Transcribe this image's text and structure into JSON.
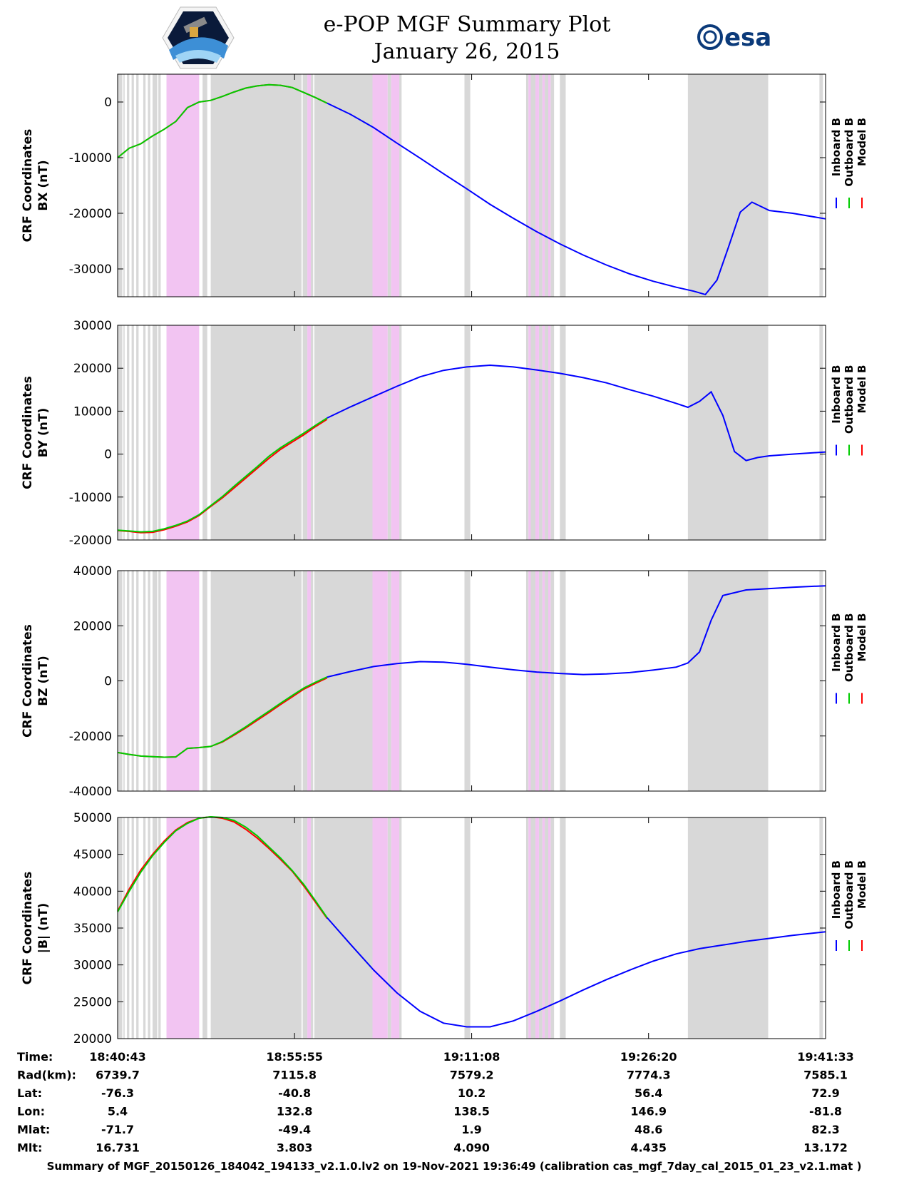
{
  "title": "e-POP MGF Summary Plot",
  "subtitle": "January 26, 2015",
  "logos": {
    "left": "cassiope-satellite-logo",
    "right_text": "esa"
  },
  "colors": {
    "inboard": "#0000ff",
    "outboard": "#00cc00",
    "model": "#ff0000",
    "gray_band": "#d8d8d8",
    "pink_band": "#f2c4f2"
  },
  "legend": [
    "Inboard B",
    "Outboard B",
    "Model B"
  ],
  "x_ticks": [
    "18:40:43",
    "18:55:55",
    "19:11:08",
    "19:26:20",
    "19:41:33"
  ],
  "table": {
    "rows": [
      {
        "label": "Time:",
        "values": [
          "18:40:43",
          "18:55:55",
          "19:11:08",
          "19:26:20",
          "19:41:33"
        ]
      },
      {
        "label": "Rad(km):",
        "values": [
          "6739.7",
          "7115.8",
          "7579.2",
          "7774.3",
          "7585.1"
        ]
      },
      {
        "label": "Lat:",
        "values": [
          "-76.3",
          "-40.8",
          "10.2",
          "56.4",
          "72.9"
        ]
      },
      {
        "label": "Lon:",
        "values": [
          "5.4",
          "132.8",
          "138.5",
          "146.9",
          "-81.8"
        ]
      },
      {
        "label": "Mlat:",
        "values": [
          "-71.7",
          "-49.4",
          "1.9",
          "48.6",
          "82.3"
        ]
      },
      {
        "label": "Mlt:",
        "values": [
          "16.731",
          "3.803",
          "4.090",
          "4.435",
          "13.172"
        ]
      }
    ]
  },
  "footer": "Summary of MGF_20150126_184042_194133_v2.1.0.lv2 on 19-Nov-2021 19:36:49 (calibration cas_mgf_7day_cal_2015_01_23_v2.1.mat )",
  "chart_data": {
    "type": "line",
    "x_unit": "minutes after 18:40:43",
    "xlim": [
      0,
      60.83
    ],
    "x_tick_values": [
      0,
      15.2,
      30.42,
      45.62,
      60.83
    ],
    "gray_bands": [
      [
        0,
        0.4
      ],
      [
        0.5,
        0.6
      ],
      [
        0.8,
        1.0
      ],
      [
        1.2,
        1.4
      ],
      [
        1.6,
        1.8
      ],
      [
        2.2,
        2.4
      ],
      [
        2.6,
        2.8
      ],
      [
        3.0,
        3.4
      ],
      [
        3.5,
        3.7
      ],
      [
        4.2,
        4.7
      ],
      [
        5.9,
        6.2
      ],
      [
        6.6,
        7.0
      ],
      [
        7.3,
        7.7
      ],
      [
        8.0,
        15.8
      ],
      [
        15.9,
        16.3
      ],
      [
        16.6,
        16.8
      ],
      [
        16.9,
        21.9
      ],
      [
        22.1,
        22.6
      ],
      [
        23.2,
        23.5
      ],
      [
        24.2,
        24.4
      ],
      [
        29.8,
        30.3
      ],
      [
        35.1,
        35.3
      ],
      [
        35.5,
        35.9
      ],
      [
        36.2,
        36.5
      ],
      [
        36.7,
        37.0
      ],
      [
        37.2,
        37.5
      ],
      [
        38.0,
        38.5
      ],
      [
        49.0,
        55.9
      ],
      [
        60.3,
        60.6
      ]
    ],
    "pink_bands": [
      [
        4.2,
        7.0
      ],
      [
        16.3,
        16.6
      ],
      [
        21.9,
        23.2
      ],
      [
        23.5,
        24.2
      ],
      [
        35.3,
        35.5
      ],
      [
        35.9,
        36.2
      ],
      [
        36.5,
        36.7
      ],
      [
        37.0,
        37.2
      ]
    ],
    "panels": [
      {
        "ylabel": [
          "CRF Coordinates",
          "BX (nT)"
        ],
        "ylim": [
          -35000,
          5000
        ],
        "yticks": [
          0,
          -10000,
          -20000,
          -30000
        ],
        "series": [
          {
            "name": "Model B",
            "color": "#ff0000",
            "x": [
              0,
              1,
              2,
              3,
              4,
              5,
              6,
              7,
              8,
              9,
              10,
              11,
              12,
              13,
              14,
              15,
              16,
              17,
              18
            ],
            "y": [
              -10000,
              -8300,
              -7500,
              -6100,
              -4900,
              -3500,
              -1000,
              0,
              300,
              1000,
              1800,
              2500,
              2900,
              3100,
              3000,
              2600,
              1700,
              800,
              -200
            ]
          },
          {
            "name": "Outboard B",
            "color": "#00cc00",
            "x": [
              0,
              1,
              2,
              3,
              4,
              5,
              6,
              7,
              8,
              9,
              10,
              11,
              12,
              13,
              14,
              15,
              16,
              17,
              18
            ],
            "y": [
              -10000,
              -8300,
              -7500,
              -6100,
              -4900,
              -3500,
              -1000,
              0,
              300,
              1000,
              1800,
              2500,
              2900,
              3100,
              3000,
              2600,
              1700,
              800,
              -200
            ]
          },
          {
            "name": "Inboard B",
            "color": "#0000ff",
            "x": [
              18,
              20,
              22,
              24,
              26,
              28,
              30,
              32,
              34,
              36,
              38,
              40,
              42,
              44,
              46,
              48,
              49.5,
              50.5,
              51.5,
              52.5,
              53.5,
              54.5,
              56,
              58,
              60.83
            ],
            "y": [
              -200,
              -2200,
              -4600,
              -7400,
              -10100,
              -12900,
              -15600,
              -18400,
              -20900,
              -23300,
              -25500,
              -27500,
              -29300,
              -30900,
              -32200,
              -33300,
              -34000,
              -34600,
              -32000,
              -26000,
              -19800,
              -18000,
              -19500,
              -20000,
              -21000
            ]
          }
        ]
      },
      {
        "ylabel": [
          "CRF Coordinates",
          "BY (nT)"
        ],
        "ylim": [
          -20000,
          30000
        ],
        "yticks": [
          30000,
          20000,
          10000,
          0,
          -10000,
          -20000
        ],
        "series": [
          {
            "name": "Model B",
            "color": "#ff0000",
            "x": [
              0,
              1,
              2,
              3,
              4,
              5,
              6,
              7,
              8,
              9,
              10,
              11,
              12,
              13,
              14,
              15,
              16,
              17,
              18
            ],
            "y": [
              -17800,
              -18000,
              -18300,
              -18200,
              -17600,
              -16800,
              -15800,
              -14300,
              -12200,
              -10200,
              -7900,
              -5600,
              -3300,
              -1000,
              1100,
              2800,
              4500,
              6400,
              8100
            ]
          },
          {
            "name": "Outboard B",
            "color": "#00cc00",
            "x": [
              0,
              1,
              2,
              3,
              4,
              5,
              6,
              7,
              8,
              9,
              10,
              11,
              12,
              13,
              14,
              15,
              16,
              17,
              18
            ],
            "y": [
              -17700,
              -17900,
              -18100,
              -18000,
              -17400,
              -16600,
              -15600,
              -14100,
              -12000,
              -9900,
              -7500,
              -5200,
              -2900,
              -500,
              1500,
              3200,
              4900,
              6700,
              8400
            ]
          },
          {
            "name": "Inboard B",
            "color": "#0000ff",
            "x": [
              18,
              20,
              22,
              24,
              26,
              28,
              30,
              32,
              34,
              36,
              38,
              40,
              42,
              44,
              46,
              48,
              49,
              50,
              51,
              52,
              53,
              54,
              55,
              56,
              58,
              60.83
            ],
            "y": [
              8400,
              11000,
              13400,
              15800,
              18000,
              19500,
              20300,
              20700,
              20300,
              19600,
              18800,
              17800,
              16600,
              15000,
              13500,
              11800,
              10900,
              12300,
              14500,
              9000,
              600,
              -1500,
              -800,
              -400,
              0,
              500
            ]
          }
        ]
      },
      {
        "ylabel": [
          "CRF Coordinates",
          "BZ (nT)"
        ],
        "ylim": [
          -40000,
          40000
        ],
        "yticks": [
          40000,
          20000,
          0,
          -20000,
          -40000
        ],
        "series": [
          {
            "name": "Model B",
            "color": "#ff0000",
            "x": [
              0,
              1,
              2,
              3,
              4,
              5,
              6,
              7,
              8,
              9,
              10,
              11,
              12,
              13,
              14,
              15,
              16,
              17,
              18
            ],
            "y": [
              -26000,
              -26700,
              -27300,
              -27500,
              -27700,
              -27600,
              -24500,
              -24200,
              -23800,
              -22200,
              -19700,
              -17100,
              -14300,
              -11500,
              -8600,
              -5800,
              -3000,
              -900,
              1100
            ]
          },
          {
            "name": "Outboard B",
            "color": "#00cc00",
            "x": [
              0,
              1,
              2,
              3,
              4,
              5,
              6,
              7,
              8,
              9,
              10,
              11,
              12,
              13,
              14,
              15,
              16,
              17,
              18
            ],
            "y": [
              -26000,
              -26700,
              -27300,
              -27500,
              -27700,
              -27600,
              -24500,
              -24200,
              -23800,
              -22000,
              -19400,
              -16700,
              -13800,
              -11000,
              -8100,
              -5300,
              -2600,
              -500,
              1400
            ]
          },
          {
            "name": "Inboard B",
            "color": "#0000ff",
            "x": [
              18,
              20,
              22,
              24,
              26,
              28,
              30,
              32,
              34,
              36,
              38,
              40,
              42,
              44,
              46,
              48,
              49,
              50,
              51,
              52,
              54,
              56,
              58,
              60.83
            ],
            "y": [
              1400,
              3400,
              5200,
              6300,
              7000,
              6800,
              6000,
              5000,
              4000,
              3200,
              2700,
              2300,
              2500,
              3000,
              3900,
              5000,
              6500,
              10500,
              22000,
              31000,
              33000,
              33500,
              34000,
              34500
            ]
          }
        ]
      },
      {
        "ylabel": [
          "CRF Coordinates",
          "|B| (nT)"
        ],
        "ylim": [
          20000,
          50000
        ],
        "yticks": [
          50000,
          45000,
          40000,
          35000,
          30000,
          25000,
          20000
        ],
        "series": [
          {
            "name": "Model B",
            "color": "#ff0000",
            "x": [
              0,
              1,
              2,
              3,
              4,
              5,
              6,
              7,
              8,
              9,
              10,
              11,
              12,
              13,
              14,
              15,
              16,
              17,
              18
            ],
            "y": [
              37300,
              40300,
              42900,
              45000,
              46800,
              48300,
              49300,
              49900,
              50100,
              49900,
              49400,
              48400,
              47200,
              45800,
              44300,
              42700,
              40700,
              38500,
              36300
            ]
          },
          {
            "name": "Outboard B",
            "color": "#00cc00",
            "x": [
              0,
              1,
              2,
              3,
              4,
              5,
              6,
              7,
              8,
              9,
              10,
              11,
              12,
              13,
              14,
              15,
              16,
              17,
              18
            ],
            "y": [
              37200,
              40000,
              42600,
              44800,
              46600,
              48200,
              49200,
              49900,
              50100,
              50000,
              49600,
              48700,
              47500,
              46000,
              44500,
              42800,
              40900,
              38700,
              36400
            ]
          },
          {
            "name": "Inboard B",
            "color": "#0000ff",
            "x": [
              18,
              20,
              22,
              24,
              26,
              28,
              30,
              32,
              34,
              36,
              38,
              40,
              42,
              44,
              46,
              48,
              50,
              52,
              54,
              56,
              58,
              60.83
            ],
            "y": [
              36400,
              32800,
              29300,
              26200,
              23700,
              22100,
              21600,
              21600,
              22400,
              23700,
              25100,
              26600,
              28000,
              29300,
              30500,
              31500,
              32200,
              32700,
              33200,
              33600,
              34000,
              34500
            ]
          }
        ]
      }
    ]
  }
}
